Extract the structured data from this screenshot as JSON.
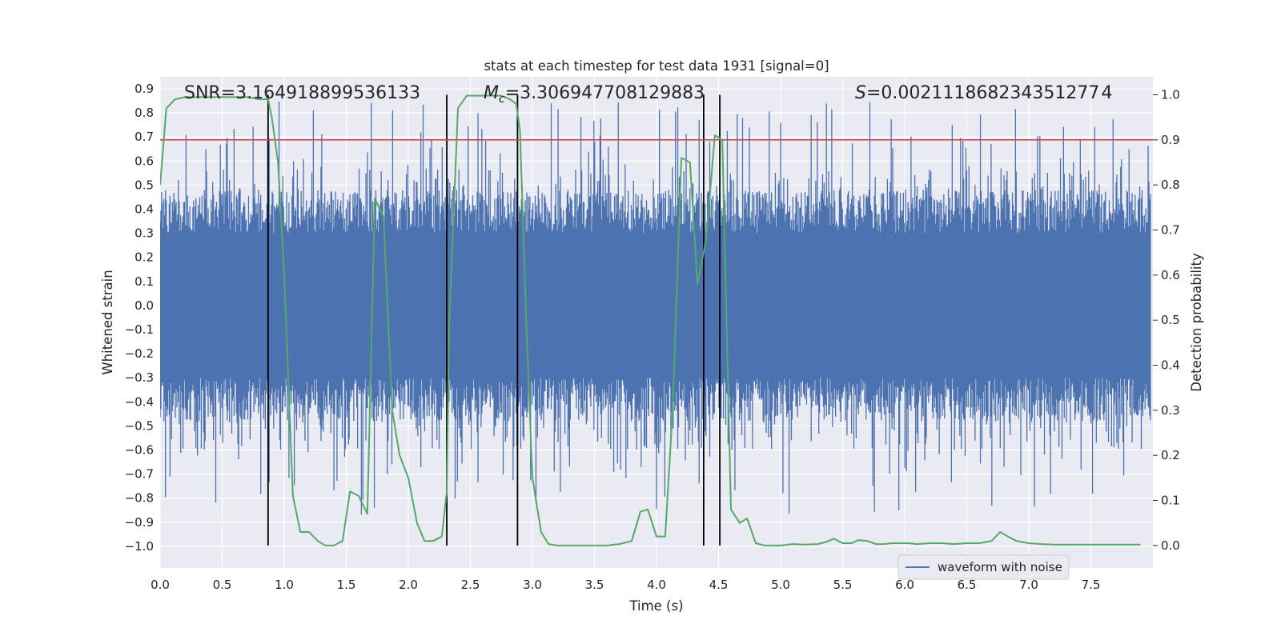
{
  "chart_data": {
    "type": "line",
    "title": "stats at each timestep for test data 1931 [signal=0]",
    "xlabel": "Time (s)",
    "ylabel_left": "Whitened strain",
    "ylabel_right": "Detection probability",
    "xlim": [
      0,
      8.0
    ],
    "ylim_left": [
      -1.09,
      0.95
    ],
    "ylim_right": [
      -0.05,
      1.04
    ],
    "x_ticks": [
      "0.0",
      "0.5",
      "1.0",
      "1.5",
      "2.0",
      "2.5",
      "3.0",
      "3.5",
      "4.0",
      "4.5",
      "5.0",
      "5.5",
      "6.0",
      "6.5",
      "7.0",
      "7.5"
    ],
    "y_ticks_left": [
      "0.9",
      "0.8",
      "0.7",
      "0.6",
      "0.5",
      "0.4",
      "0.3",
      "0.2",
      "0.1",
      "0.0",
      "−0.1",
      "−0.2",
      "−0.3",
      "−0.4",
      "−0.5",
      "−0.6",
      "−0.7",
      "−0.8",
      "−0.9",
      "−1.0"
    ],
    "y_ticks_right": [
      "1.0",
      "0.9",
      "0.8",
      "0.7",
      "0.6",
      "0.5",
      "0.4",
      "0.3",
      "0.2",
      "0.1",
      "0.0"
    ],
    "grid": true,
    "legend_position": "bottom-right",
    "annotations": {
      "snr": {
        "symbol": "SNR",
        "value": "=3.164918899536133"
      },
      "chirp_mass": {
        "symbol": "M",
        "subscript": "c",
        "value": "=3.306947708129883"
      },
      "spin": {
        "symbol": "S",
        "value": "=0.002111868234351277 4"
      }
    },
    "threshold_right": 0.9,
    "vertical_markers_x": [
      0.87,
      2.31,
      2.88,
      4.38,
      4.51
    ],
    "series": [
      {
        "name": "waveform with noise",
        "axis": "left",
        "color": "#4c72b0",
        "envelope": {
          "duration_s": 7.98,
          "core_amplitude": 0.3,
          "peak_max": 0.85,
          "peak_min": -0.87
        }
      },
      {
        "axis": "right",
        "color": "#55a868",
        "x": [
          0.0,
          0.05,
          0.12,
          0.2,
          0.3,
          0.4,
          0.5,
          0.6,
          0.7,
          0.8,
          0.87,
          0.9,
          0.95,
          1.0,
          1.07,
          1.13,
          1.2,
          1.27,
          1.33,
          1.4,
          1.47,
          1.53,
          1.6,
          1.67,
          1.73,
          1.8,
          1.87,
          1.93,
          2.0,
          2.07,
          2.13,
          2.2,
          2.27,
          2.31,
          2.33,
          2.4,
          2.47,
          2.53,
          2.6,
          2.67,
          2.75,
          2.82,
          2.87,
          2.9,
          2.95,
          3.0,
          3.07,
          3.13,
          3.2,
          3.3,
          3.4,
          3.5,
          3.6,
          3.7,
          3.8,
          3.87,
          3.93,
          4.0,
          4.07,
          4.13,
          4.2,
          4.27,
          4.33,
          4.4,
          4.47,
          4.53,
          4.6,
          4.67,
          4.73,
          4.8,
          4.87,
          4.93,
          5.0,
          5.1,
          5.2,
          5.3,
          5.37,
          5.43,
          5.5,
          5.57,
          5.63,
          5.7,
          5.77,
          5.83,
          5.9,
          5.97,
          6.03,
          6.1,
          6.2,
          6.3,
          6.4,
          6.5,
          6.6,
          6.7,
          6.77,
          6.83,
          6.9,
          7.0,
          7.1,
          7.2,
          7.3,
          7.4,
          7.5,
          7.6,
          7.7,
          7.8,
          7.9
        ],
        "values": [
          0.8,
          0.97,
          0.99,
          0.995,
          0.995,
          0.995,
          0.995,
          0.995,
          0.995,
          0.99,
          0.99,
          0.95,
          0.85,
          0.6,
          0.11,
          0.03,
          0.03,
          0.01,
          0.0,
          0.0,
          0.01,
          0.12,
          0.11,
          0.07,
          0.77,
          0.73,
          0.3,
          0.2,
          0.15,
          0.05,
          0.01,
          0.01,
          0.02,
          0.12,
          0.5,
          0.97,
          0.998,
          0.998,
          0.998,
          0.998,
          0.998,
          0.99,
          0.98,
          0.92,
          0.5,
          0.15,
          0.03,
          0.003,
          0.0,
          0.0,
          0.0,
          0.0,
          0.0,
          0.003,
          0.01,
          0.075,
          0.08,
          0.02,
          0.02,
          0.3,
          0.86,
          0.85,
          0.58,
          0.68,
          0.91,
          0.9,
          0.08,
          0.05,
          0.06,
          0.005,
          0.0,
          0.0,
          0.0,
          0.003,
          0.002,
          0.003,
          0.008,
          0.015,
          0.005,
          0.005,
          0.012,
          0.01,
          0.003,
          0.003,
          0.005,
          0.005,
          0.005,
          0.003,
          0.005,
          0.005,
          0.003,
          0.005,
          0.005,
          0.01,
          0.03,
          0.02,
          0.01,
          0.005,
          0.003,
          0.002,
          0.002,
          0.002,
          0.002,
          0.002,
          0.002,
          0.002,
          0.002
        ]
      }
    ]
  }
}
